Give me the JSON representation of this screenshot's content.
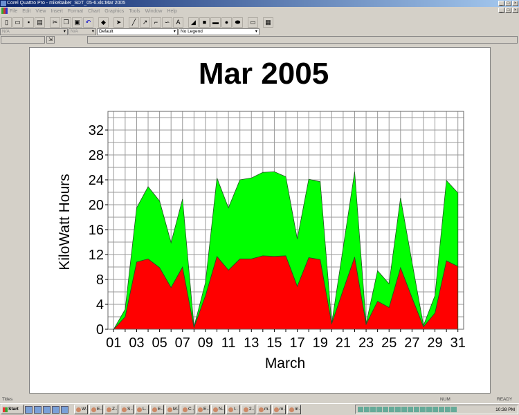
{
  "window": {
    "title": "Corel Quattro Pro - mikebaker_SDT_05-6.xls:Mar 2005"
  },
  "menu": [
    "File",
    "Edit",
    "View",
    "Insert",
    "Format",
    "Chart",
    "Graphics",
    "Tools",
    "Window",
    "Help"
  ],
  "toolbar": [
    "new-icon",
    "open-icon",
    "save-icon",
    "print-icon",
    "cut-icon",
    "copy-icon",
    "paste-icon",
    "undo-icon",
    "gem-icon",
    "pointer-icon",
    "line-icon",
    "arrow-icon",
    "polyline-icon",
    "freehand-icon",
    "text-icon",
    "polygon-icon",
    "rectangle-icon",
    "rounded-rect-icon",
    "ellipse-icon",
    "shape-icon",
    "frame-icon",
    "chart-object-icon"
  ],
  "propbar": {
    "field1": "N/A",
    "field2": "N/A",
    "style": "Default",
    "legend": "No Legend"
  },
  "status": {
    "left": "Titles",
    "num": "NUM",
    "mode": "READY"
  },
  "taskbar": {
    "start": "Start",
    "tasks": [
      "W..",
      "E..",
      "Z..",
      "S..",
      "L..",
      "E..",
      "M..",
      "C..",
      "E..",
      "N..",
      "I..",
      "2..",
      "m..",
      "m..",
      "m.."
    ],
    "clock": "10:38 PM"
  },
  "chart_data": {
    "type": "area",
    "stacked": true,
    "title": "Mar 2005",
    "xlabel": "March",
    "ylabel": "KiloWatt Hours",
    "x": [
      1,
      2,
      3,
      4,
      5,
      6,
      7,
      8,
      9,
      10,
      11,
      12,
      13,
      14,
      15,
      16,
      17,
      18,
      19,
      20,
      21,
      22,
      23,
      24,
      25,
      26,
      27,
      28,
      29,
      30,
      31
    ],
    "xticklabels": [
      "01",
      "03",
      "05",
      "07",
      "09",
      "11",
      "13",
      "15",
      "17",
      "19",
      "21",
      "23",
      "25",
      "27",
      "29",
      "31"
    ],
    "yticks": [
      0,
      4,
      8,
      12,
      16,
      20,
      24,
      28,
      32
    ],
    "ylim": [
      0,
      35
    ],
    "grid": true,
    "legend": "none",
    "series": [
      {
        "color": "#ff0000",
        "values": [
          0,
          2.0,
          10.8,
          11.3,
          9.9,
          6.7,
          10.0,
          0.3,
          5.4,
          11.7,
          9.5,
          11.3,
          11.3,
          11.8,
          11.7,
          11.8,
          6.9,
          11.5,
          11.2,
          0.9,
          6.3,
          11.6,
          0.8,
          4.5,
          3.5,
          9.9,
          5.1,
          0.4,
          2.6,
          11.0,
          10.1
        ]
      },
      {
        "color": "#00ff00",
        "values": [
          0,
          1.2,
          8.7,
          11.6,
          10.7,
          7.2,
          10.9,
          0.1,
          2.1,
          12.6,
          10.0,
          12.7,
          13.0,
          13.4,
          13.6,
          12.7,
          7.6,
          12.6,
          12.5,
          0,
          6.8,
          13.7,
          0.1,
          4.9,
          3.8,
          11.2,
          5.7,
          0.2,
          2.8,
          12.9,
          11.8
        ]
      }
    ]
  }
}
